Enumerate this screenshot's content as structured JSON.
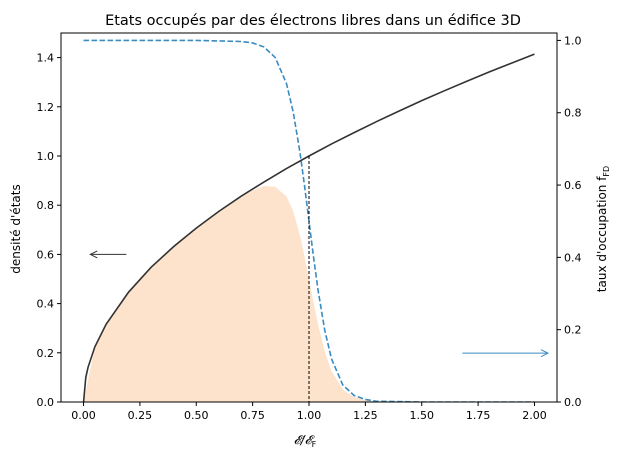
{
  "chart_data": {
    "type": "line",
    "title": "Etats occupés par des électrons libres dans un édifice 3D",
    "xlabel": "𝓔/𝓔",
    "xlabel_sub": "F",
    "ylabel_left": "densité d'états",
    "ylabel_right": "taux d'occupation f",
    "ylabel_right_sub": "FD",
    "xlim": [
      -0.1,
      2.1
    ],
    "ylim_left": [
      0,
      1.5
    ],
    "ylim_right": [
      0,
      1.0205
    ],
    "x_ticks": [
      "0.00",
      "0.25",
      "0.50",
      "0.75",
      "1.00",
      "1.25",
      "1.50",
      "1.75",
      "2.00"
    ],
    "x_tick_values": [
      0,
      0.25,
      0.5,
      0.75,
      1.0,
      1.25,
      1.5,
      1.75,
      2.0
    ],
    "y_left_ticks": [
      "0.0",
      "0.2",
      "0.4",
      "0.6",
      "0.8",
      "1.0",
      "1.2",
      "1.4"
    ],
    "y_left_tick_values": [
      0,
      0.2,
      0.4,
      0.6,
      0.8,
      1.0,
      1.2,
      1.4
    ],
    "y_right_ticks": [
      "0.0",
      "0.2",
      "0.4",
      "0.6",
      "0.8",
      "1.0"
    ],
    "y_right_tick_values": [
      0,
      0.2,
      0.4,
      0.6,
      0.8,
      1.0
    ],
    "series": [
      {
        "axis": "left",
        "style": "solid",
        "color": "#333333",
        "x": [
          0,
          0.01,
          0.02,
          0.05,
          0.1,
          0.2,
          0.3,
          0.4,
          0.5,
          0.6,
          0.7,
          0.8,
          0.9,
          1.0,
          1.1,
          1.2,
          1.3,
          1.4,
          1.5,
          1.6,
          1.7,
          1.8,
          1.9,
          2.0
        ],
        "y": [
          0,
          0.1,
          0.141,
          0.224,
          0.316,
          0.447,
          0.548,
          0.632,
          0.707,
          0.775,
          0.837,
          0.894,
          0.949,
          1.0,
          1.049,
          1.095,
          1.14,
          1.183,
          1.225,
          1.265,
          1.304,
          1.342,
          1.378,
          1.414
        ]
      },
      {
        "axis": "right",
        "style": "dashed",
        "color": "#3a8bc0",
        "x": [
          0,
          0.5,
          0.7,
          0.75,
          0.8,
          0.85,
          0.9,
          0.93,
          0.96,
          0.98,
          1.0,
          1.02,
          1.04,
          1.07,
          1.1,
          1.15,
          1.2,
          1.25,
          1.3,
          1.5,
          2.0
        ],
        "y": [
          1.0,
          1.0,
          0.997,
          0.993,
          0.982,
          0.953,
          0.881,
          0.802,
          0.69,
          0.599,
          0.5,
          0.401,
          0.31,
          0.198,
          0.119,
          0.047,
          0.018,
          0.007,
          0.002,
          0.0,
          0.0
        ]
      },
      {
        "axis": "left",
        "style": "filled",
        "color": "#fde3cc",
        "x": [
          0,
          0.05,
          0.1,
          0.2,
          0.3,
          0.4,
          0.5,
          0.6,
          0.7,
          0.75,
          0.8,
          0.85,
          0.9,
          0.93,
          0.96,
          0.98,
          1.0,
          1.02,
          1.04,
          1.07,
          1.1,
          1.15,
          1.2,
          1.25,
          1.3
        ],
        "y": [
          0,
          0.224,
          0.316,
          0.447,
          0.548,
          0.632,
          0.707,
          0.773,
          0.834,
          0.86,
          0.878,
          0.875,
          0.836,
          0.776,
          0.677,
          0.593,
          0.5,
          0.405,
          0.316,
          0.205,
          0.125,
          0.051,
          0.02,
          0.008,
          0.002
        ]
      }
    ],
    "fermi_marker": {
      "x": 1.0,
      "y_top": 1.0
    },
    "arrows": [
      {
        "axis": "left",
        "direction": "left",
        "color": "#333333",
        "x_from": 0.19,
        "x_to": 0.03,
        "y": 0.6
      },
      {
        "axis": "right",
        "direction": "right",
        "color": "#3a8bc0",
        "x_from": 1.68,
        "x_to": 2.06,
        "y": 0.135
      }
    ],
    "grid": false
  }
}
